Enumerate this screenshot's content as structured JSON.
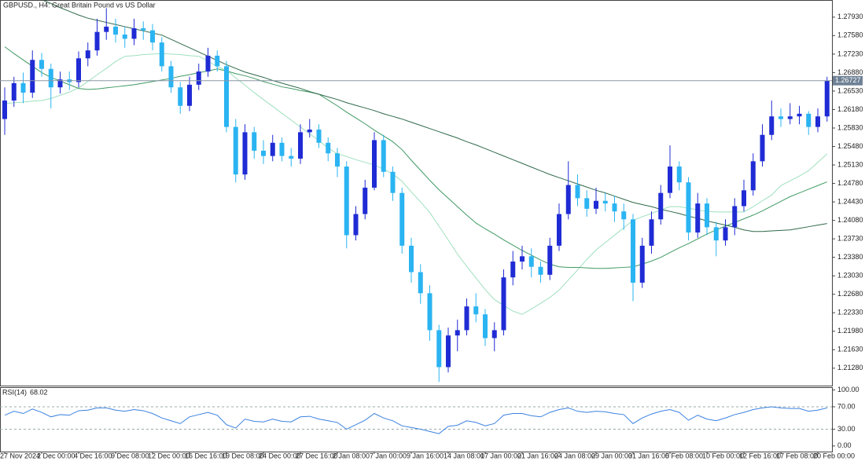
{
  "chart_data": [
    {
      "type": "candlestick",
      "title": "GBPUSD., H4:  Great Britain Pound vs US Dollar",
      "categories": [
        "27 Nov 2024",
        null,
        null,
        null,
        "2 Dec 00:00",
        null,
        null,
        null,
        "4 Dec 16:00",
        null,
        null,
        null,
        "9 Dec 08:00",
        null,
        null,
        null,
        "12 Dec 00:00",
        null,
        null,
        null,
        "16 Dec 16:00",
        null,
        null,
        null,
        "19 Dec 08:00",
        null,
        null,
        null,
        "24 Dec 00:00",
        null,
        null,
        null,
        "27 Dec 16:00",
        null,
        null,
        null,
        "2 Jan 08:00",
        null,
        null,
        null,
        "7 Jan 00:00",
        null,
        null,
        null,
        "9 Jan 16:00",
        null,
        null,
        null,
        "14 Jan 08:00",
        null,
        null,
        null,
        "17 Jan 00:00",
        null,
        null,
        null,
        "21 Jan 16:00",
        null,
        null,
        null,
        "24 Jan 08:00",
        null,
        null,
        null,
        "29 Jan 00:00",
        null,
        null,
        null,
        "31 Jan 16:00",
        null,
        null,
        null,
        "5 Feb 08:00",
        null,
        null,
        null,
        "10 Feb 00:00",
        null,
        null,
        null,
        "12 Feb 16:00",
        null,
        null,
        null,
        "17 Feb 08:00",
        null,
        null,
        null,
        "20 Feb 00:00",
        null
      ],
      "open": [
        1.26,
        1.2635,
        1.2668,
        1.265,
        1.2712,
        1.2695,
        1.266,
        1.2675,
        1.267,
        1.2715,
        1.273,
        1.2765,
        1.2775,
        1.276,
        1.2752,
        1.2772,
        1.2768,
        1.2745,
        1.27,
        1.266,
        1.2625,
        1.2665,
        1.269,
        1.272,
        1.27,
        1.2585,
        1.2495,
        1.2575,
        1.254,
        1.253,
        1.2555,
        1.253,
        1.2525,
        1.2575,
        1.258,
        1.2555,
        1.2535,
        1.251,
        1.238,
        1.242,
        1.247,
        1.256,
        1.25,
        1.246,
        1.236,
        1.231,
        1.227,
        1.22,
        1.213,
        1.219,
        1.22,
        1.2245,
        1.223,
        1.2185,
        1.22,
        1.23,
        1.233,
        1.234,
        1.232,
        1.2305,
        1.236,
        1.242,
        1.2475,
        1.245,
        1.243,
        1.2445,
        1.244,
        1.2425,
        1.241,
        1.229,
        1.236,
        1.241,
        1.246,
        1.251,
        1.248,
        1.2385,
        1.244,
        1.2395,
        1.237,
        1.2395,
        1.2435,
        1.2465,
        1.252,
        1.257,
        1.2605,
        1.26,
        1.2605,
        1.261,
        1.2585,
        1.2605
      ],
      "high": [
        1.266,
        1.268,
        1.2688,
        1.273,
        1.2725,
        1.2705,
        1.269,
        1.269,
        1.2728,
        1.2745,
        1.279,
        1.281,
        1.279,
        1.2775,
        1.279,
        1.2785,
        1.278,
        1.2755,
        1.271,
        1.267,
        1.268,
        1.2705,
        1.2735,
        1.273,
        1.271,
        1.26,
        1.259,
        1.2585,
        1.256,
        1.257,
        1.2565,
        1.2545,
        1.259,
        1.26,
        1.259,
        1.2565,
        1.2545,
        1.252,
        1.2435,
        1.2485,
        1.2575,
        1.257,
        1.251,
        1.247,
        1.2375,
        1.2325,
        1.2285,
        1.221,
        1.2205,
        1.222,
        1.226,
        1.227,
        1.224,
        1.2215,
        1.2315,
        1.235,
        1.236,
        1.2355,
        1.233,
        1.2375,
        1.244,
        1.252,
        1.2495,
        1.2465,
        1.247,
        1.246,
        1.2455,
        1.244,
        1.242,
        1.2375,
        1.2425,
        1.2475,
        1.255,
        1.252,
        1.249,
        1.246,
        1.245,
        1.2405,
        1.241,
        1.245,
        1.2485,
        1.2535,
        1.259,
        1.2635,
        1.262,
        1.263,
        1.2625,
        1.2615,
        1.262,
        1.268
      ],
      "low": [
        1.257,
        1.2623,
        1.263,
        1.264,
        1.268,
        1.262,
        1.2648,
        1.2655,
        1.266,
        1.27,
        1.272,
        1.275,
        1.2745,
        1.2735,
        1.274,
        1.275,
        1.273,
        1.269,
        1.265,
        1.261,
        1.2615,
        1.2655,
        1.268,
        1.269,
        1.2575,
        1.248,
        1.2485,
        1.2525,
        1.2515,
        1.252,
        1.252,
        1.251,
        1.2515,
        1.2565,
        1.2545,
        1.252,
        1.249,
        1.2355,
        1.237,
        1.241,
        1.2465,
        1.249,
        1.2445,
        1.2345,
        1.229,
        1.225,
        1.218,
        1.2102,
        1.212,
        1.216,
        1.219,
        1.2215,
        1.217,
        1.216,
        1.219,
        1.2285,
        1.2315,
        1.23,
        1.229,
        1.2295,
        1.235,
        1.241,
        1.2435,
        1.2415,
        1.242,
        1.2425,
        1.2405,
        1.239,
        1.2255,
        1.228,
        1.2345,
        1.24,
        1.245,
        1.2465,
        1.237,
        1.2375,
        1.238,
        1.234,
        1.236,
        1.238,
        1.2425,
        1.2455,
        1.251,
        1.256,
        1.2585,
        1.259,
        1.259,
        1.257,
        1.2575,
        1.2595
      ],
      "close": [
        1.2635,
        1.2668,
        1.265,
        1.2712,
        1.2695,
        1.266,
        1.2675,
        1.267,
        1.2715,
        1.273,
        1.2765,
        1.2775,
        1.276,
        1.2752,
        1.2772,
        1.2768,
        1.2745,
        1.27,
        1.266,
        1.2625,
        1.2665,
        1.269,
        1.272,
        1.27,
        1.2585,
        1.2495,
        1.2575,
        1.254,
        1.253,
        1.2555,
        1.253,
        1.2525,
        1.2575,
        1.258,
        1.2555,
        1.2535,
        1.251,
        1.238,
        1.242,
        1.247,
        1.256,
        1.25,
        1.246,
        1.236,
        1.231,
        1.227,
        1.22,
        1.213,
        1.219,
        1.22,
        1.2245,
        1.223,
        1.2185,
        1.22,
        1.23,
        1.233,
        1.234,
        1.232,
        1.2305,
        1.236,
        1.242,
        1.2475,
        1.245,
        1.243,
        1.2445,
        1.244,
        1.2425,
        1.241,
        1.229,
        1.236,
        1.241,
        1.246,
        1.251,
        1.248,
        1.2385,
        1.244,
        1.2395,
        1.237,
        1.2395,
        1.2435,
        1.2465,
        1.252,
        1.257,
        1.2605,
        1.26,
        1.2605,
        1.261,
        1.2585,
        1.2605,
        1.26727
      ],
      "up_color": "#1f2bd4",
      "down_color": "#2ab4f2",
      "last_price": 1.26727,
      "series": [
        {
          "color": "#9fe0bf",
          "values": [
            1.2629,
            1.2631,
            1.2632,
            1.2634,
            1.2635,
            1.2639,
            1.2645,
            1.2651,
            1.2659,
            1.2671,
            1.2684,
            1.2696,
            1.2709,
            1.2719,
            1.272,
            1.2722,
            1.2723,
            1.2724,
            1.2723,
            1.2722,
            1.272,
            1.2719,
            1.271,
            1.2699,
            1.2692,
            1.2678,
            1.2664,
            1.265,
            1.2637,
            1.2624,
            1.2611,
            1.2598,
            1.2585,
            1.2572,
            1.2559,
            1.2545,
            1.2534,
            1.2529,
            1.2523,
            1.2518,
            1.2513,
            1.2505,
            1.2496,
            1.2482,
            1.2462,
            1.2443,
            1.2423,
            1.2397,
            1.2371,
            1.2344,
            1.2321,
            1.2299,
            1.2277,
            1.2258,
            1.2247,
            1.2236,
            1.223,
            1.224,
            1.2251,
            1.2262,
            1.2276,
            1.2295,
            1.2314,
            1.2334,
            1.2352,
            1.2366,
            1.238,
            1.2394,
            1.2408,
            1.2415,
            1.2421,
            1.2428,
            1.2434,
            1.2434,
            1.2431,
            1.2428,
            1.2425,
            1.2424,
            1.2424,
            1.2424,
            1.2424,
            1.2434,
            1.2445,
            1.2456,
            1.2474,
            1.2483,
            1.2492,
            1.2502,
            1.2518,
            1.2534
          ]
        },
        {
          "color": "#3f9a63",
          "values": [
            1.2737,
            1.2724,
            1.2712,
            1.27,
            1.2688,
            1.2679,
            1.2672,
            1.2665,
            1.2658,
            1.2656,
            1.2657,
            1.2659,
            1.2661,
            1.2663,
            1.2665,
            1.2668,
            1.2671,
            1.2674,
            1.2677,
            1.2681,
            1.2684,
            1.2688,
            1.2691,
            1.2695,
            1.2691,
            1.2686,
            1.2682,
            1.2677,
            1.2671,
            1.2666,
            1.2661,
            1.2658,
            1.2654,
            1.2651,
            1.2647,
            1.2636,
            1.2625,
            1.2613,
            1.2602,
            1.2591,
            1.2579,
            1.2568,
            1.2557,
            1.2542,
            1.2522,
            1.2503,
            1.2484,
            1.2466,
            1.245,
            1.2434,
            1.2418,
            1.2403,
            1.2392,
            1.2382,
            1.2371,
            1.2361,
            1.2351,
            1.2342,
            1.2333,
            1.2325,
            1.232,
            1.2319,
            1.2319,
            1.2318,
            1.2317,
            1.2317,
            1.2318,
            1.2319,
            1.232,
            1.2325,
            1.2331,
            1.2338,
            1.2347,
            1.2356,
            1.2364,
            1.2373,
            1.2382,
            1.239,
            1.2397,
            1.2404,
            1.2411,
            1.2418,
            1.2426,
            1.2435,
            1.2444,
            1.2453,
            1.246,
            1.2467,
            1.2474,
            1.2481
          ]
        },
        {
          "color": "#2f6a4a",
          "values": [
            1.2856,
            1.2848,
            1.2841,
            1.2833,
            1.2826,
            1.2819,
            1.2811,
            1.2804,
            1.2797,
            1.2791,
            1.2787,
            1.2783,
            1.2779,
            1.2775,
            1.2771,
            1.2767,
            1.2763,
            1.2759,
            1.2751,
            1.2743,
            1.2735,
            1.2727,
            1.2719,
            1.2711,
            1.2703,
            1.2696,
            1.2689,
            1.2684,
            1.2679,
            1.2673,
            1.2668,
            1.2663,
            1.2658,
            1.2652,
            1.2647,
            1.2642,
            1.2637,
            1.2631,
            1.2626,
            1.2621,
            1.2616,
            1.261,
            1.2605,
            1.26,
            1.2594,
            1.2588,
            1.2582,
            1.2576,
            1.257,
            1.2564,
            1.2557,
            1.2551,
            1.2544,
            1.2537,
            1.253,
            1.2523,
            1.2516,
            1.2509,
            1.2502,
            1.2495,
            1.2489,
            1.2483,
            1.2477,
            1.2471,
            1.2465,
            1.246,
            1.2454,
            1.2448,
            1.2442,
            1.2438,
            1.2434,
            1.2429,
            1.2425,
            1.2421,
            1.2416,
            1.2412,
            1.2407,
            1.2403,
            1.2399,
            1.2395,
            1.239,
            1.2387,
            1.2387,
            1.2388,
            1.2389,
            1.239,
            1.2393,
            1.2396,
            1.2399,
            1.2402
          ]
        }
      ],
      "ylim": [
        1.2095,
        1.2824
      ],
      "yticks": [
        {
          "value": 1.2793,
          "label": "1.27930"
        },
        {
          "value": 1.2758,
          "label": "1.27580"
        },
        {
          "value": 1.2723,
          "label": "1.27230"
        },
        {
          "value": 1.2688,
          "label": "1.26880"
        },
        {
          "value": 1.2653,
          "label": "1.26530"
        },
        {
          "value": 1.2618,
          "label": "1.26180"
        },
        {
          "value": 1.2583,
          "label": "1.25830"
        },
        {
          "value": 1.2548,
          "label": "1.25480"
        },
        {
          "value": 1.2513,
          "label": "1.25130"
        },
        {
          "value": 1.2478,
          "label": "1.24780"
        },
        {
          "value": 1.2443,
          "label": "1.24430"
        },
        {
          "value": 1.2408,
          "label": "1.24080"
        },
        {
          "value": 1.2373,
          "label": "1.23730"
        },
        {
          "value": 1.2338,
          "label": "1.23380"
        },
        {
          "value": 1.2303,
          "label": "1.23030"
        },
        {
          "value": 1.2268,
          "label": "1.22680"
        },
        {
          "value": 1.2233,
          "label": "1.22330"
        },
        {
          "value": 1.2198,
          "label": "1.21980"
        },
        {
          "value": 1.2163,
          "label": "1.21630"
        },
        {
          "value": 1.2128,
          "label": "1.21280"
        }
      ]
    },
    {
      "type": "line",
      "title": "RSI(14)",
      "color": "#3b82e0",
      "values": [
        55,
        62,
        58,
        66,
        60,
        52,
        56,
        55,
        63,
        64,
        68,
        68,
        64,
        62,
        65,
        63,
        58,
        50,
        45,
        40,
        52,
        56,
        60,
        55,
        38,
        32,
        48,
        44,
        43,
        48,
        44,
        43,
        52,
        53,
        48,
        45,
        42,
        30,
        38,
        46,
        58,
        50,
        45,
        36,
        33,
        30,
        26,
        22,
        35,
        37,
        45,
        42,
        36,
        40,
        55,
        58,
        58,
        54,
        52,
        60,
        65,
        68,
        62,
        60,
        62,
        61,
        58,
        56,
        40,
        50,
        57,
        62,
        65,
        60,
        46,
        55,
        48,
        45,
        50,
        56,
        60,
        65,
        68,
        70,
        68,
        67,
        67,
        62,
        64,
        68.02
      ],
      "levels": [
        70,
        30
      ],
      "ylim": [
        -10,
        105
      ],
      "yticks": [
        {
          "value": 100,
          "label": "100.00"
        },
        {
          "value": 70,
          "label": "70.00"
        },
        {
          "value": 30,
          "label": "30.00"
        },
        {
          "value": 0,
          "label": "0.00"
        }
      ]
    }
  ]
}
